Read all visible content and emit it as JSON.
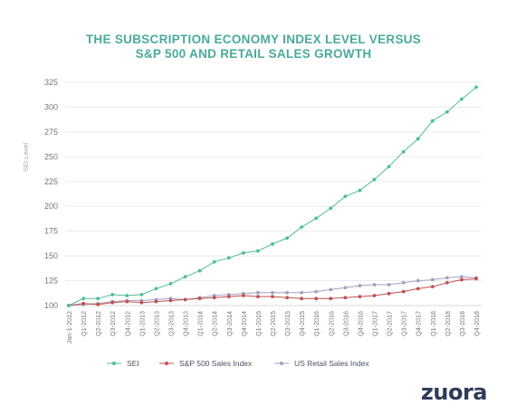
{
  "header": {
    "title_line1": "THE SUBSCRIPTION ECONOMY INDEX LEVEL VERSUS",
    "title_line2": "S&P 500 AND RETAIL SALES GROWTH"
  },
  "brand": {
    "logo_text": "zuora"
  },
  "chart_data": {
    "type": "line",
    "ylabel": "SEI Level",
    "xlabel": "",
    "ylim": [
      100,
      325
    ],
    "yticks": [
      100,
      125,
      150,
      175,
      200,
      225,
      250,
      275,
      300,
      325
    ],
    "grid": "horizontal",
    "legend_position": "bottom",
    "categories": [
      "Jan-1-2012",
      "Q1-2012",
      "Q2-2012",
      "Q3-2012",
      "Q4-2012",
      "Q1-2013",
      "Q2-2013",
      "Q3-2013",
      "Q4-2013",
      "Q1-2014",
      "Q2-2014",
      "Q3-2014",
      "Q4-2014",
      "Q1-2015",
      "Q2-2015",
      "Q3-2015",
      "Q4-2015",
      "Q1-2016",
      "Q2-2016",
      "Q3-2016",
      "Q4-2016",
      "Q1-2017",
      "Q2-2017",
      "Q3-2017",
      "Q4-2017",
      "Q1-2018",
      "Q2-2018",
      "Q3-2018",
      "Q4-2018"
    ],
    "x_tick_labels": [
      "Jan-1-2012",
      "Q1-2012",
      "Q2-2012",
      "Q3-2012",
      "Q4-2012",
      "Q1-2013",
      "Q2-2013",
      "Q3-2013",
      "Q4-2013",
      "Q1-2014",
      "Q2-2014",
      "Q3-2014",
      "Q4-2014",
      "Q1-2015",
      "Q2-2015",
      "Q3-2015",
      "Q4-2015",
      "Q1-2016",
      "Q2-2016",
      "Q3-2016",
      "Q4-2016",
      "Q1-2017",
      "Q2-2017",
      "Q3-2017",
      "Q4-2017",
      "Q1-2018",
      "Q2-2018",
      "Q3-2018",
      "Q4-2018"
    ],
    "series": [
      {
        "name": "SEI",
        "color": "#4ebd97",
        "values": [
          100,
          107,
          107,
          111,
          110,
          111,
          117,
          122,
          129,
          135,
          144,
          148,
          153,
          155,
          162,
          168,
          179,
          188,
          198,
          210,
          216,
          227,
          240,
          255,
          268,
          286,
          295,
          308,
          320
        ]
      },
      {
        "name": "S&P 500 Sales Index",
        "color": "#c0514f",
        "values": [
          100,
          102,
          101,
          103,
          104,
          103,
          104,
          105,
          106,
          107,
          108,
          109,
          110,
          109,
          109,
          108,
          107,
          107,
          107,
          108,
          109,
          110,
          112,
          114,
          117,
          119,
          123,
          126,
          127
        ]
      },
      {
        "name": "US Retail Sales Index",
        "color": "#a89fbe",
        "values": [
          100,
          101,
          102,
          104,
          105,
          105,
          106,
          107,
          106,
          108,
          110,
          111,
          112,
          113,
          113,
          113,
          113,
          114,
          116,
          118,
          120,
          121,
          121,
          123,
          125,
          126,
          128,
          129,
          128
        ]
      }
    ]
  }
}
